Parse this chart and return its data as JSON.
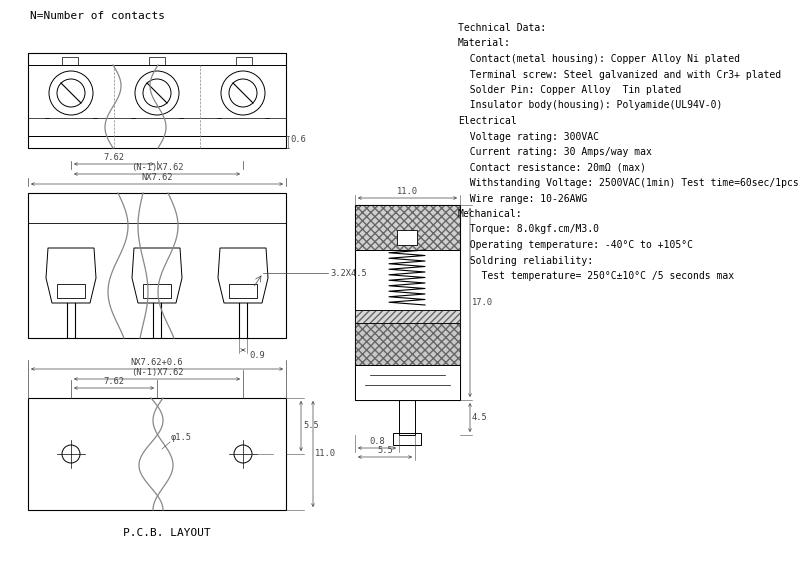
{
  "bg_color": "#ffffff",
  "title_note": "N=Number of contacts",
  "pcb_label": "P.C.B. LAYOUT",
  "tech_data_lines": [
    "Technical Data:",
    "Material:",
    "  Contact(metal housing): Copper Alloy Ni plated",
    "  Terminal screw: Steel galvanized and with Cr3+ plated",
    "  Solder Pin: Copper Alloy  Tin plated",
    "  Insulator body(housing): Polyamide(UL94V-0)",
    "Electrical",
    "  Voltage rating: 300VAC",
    "  Current rating: 30 Amps/way max",
    "  Contact resistance: 20mΩ (max)",
    "  Withstanding Voltage: 2500VAC(1min) Test time=60sec/1pcs",
    "  Wire range: 10-26AWG",
    "Mechanical:",
    "  Torque: 8.0kgf.cm/M3.0",
    "  Operating temperature: -40°C to +105°C",
    "  Soldring reliability:",
    "    Test temperature= 250°C±10°C /5 seconds max"
  ],
  "font_size_tech": 7.0,
  "line_color": "#000000",
  "dim_color": "#444444"
}
